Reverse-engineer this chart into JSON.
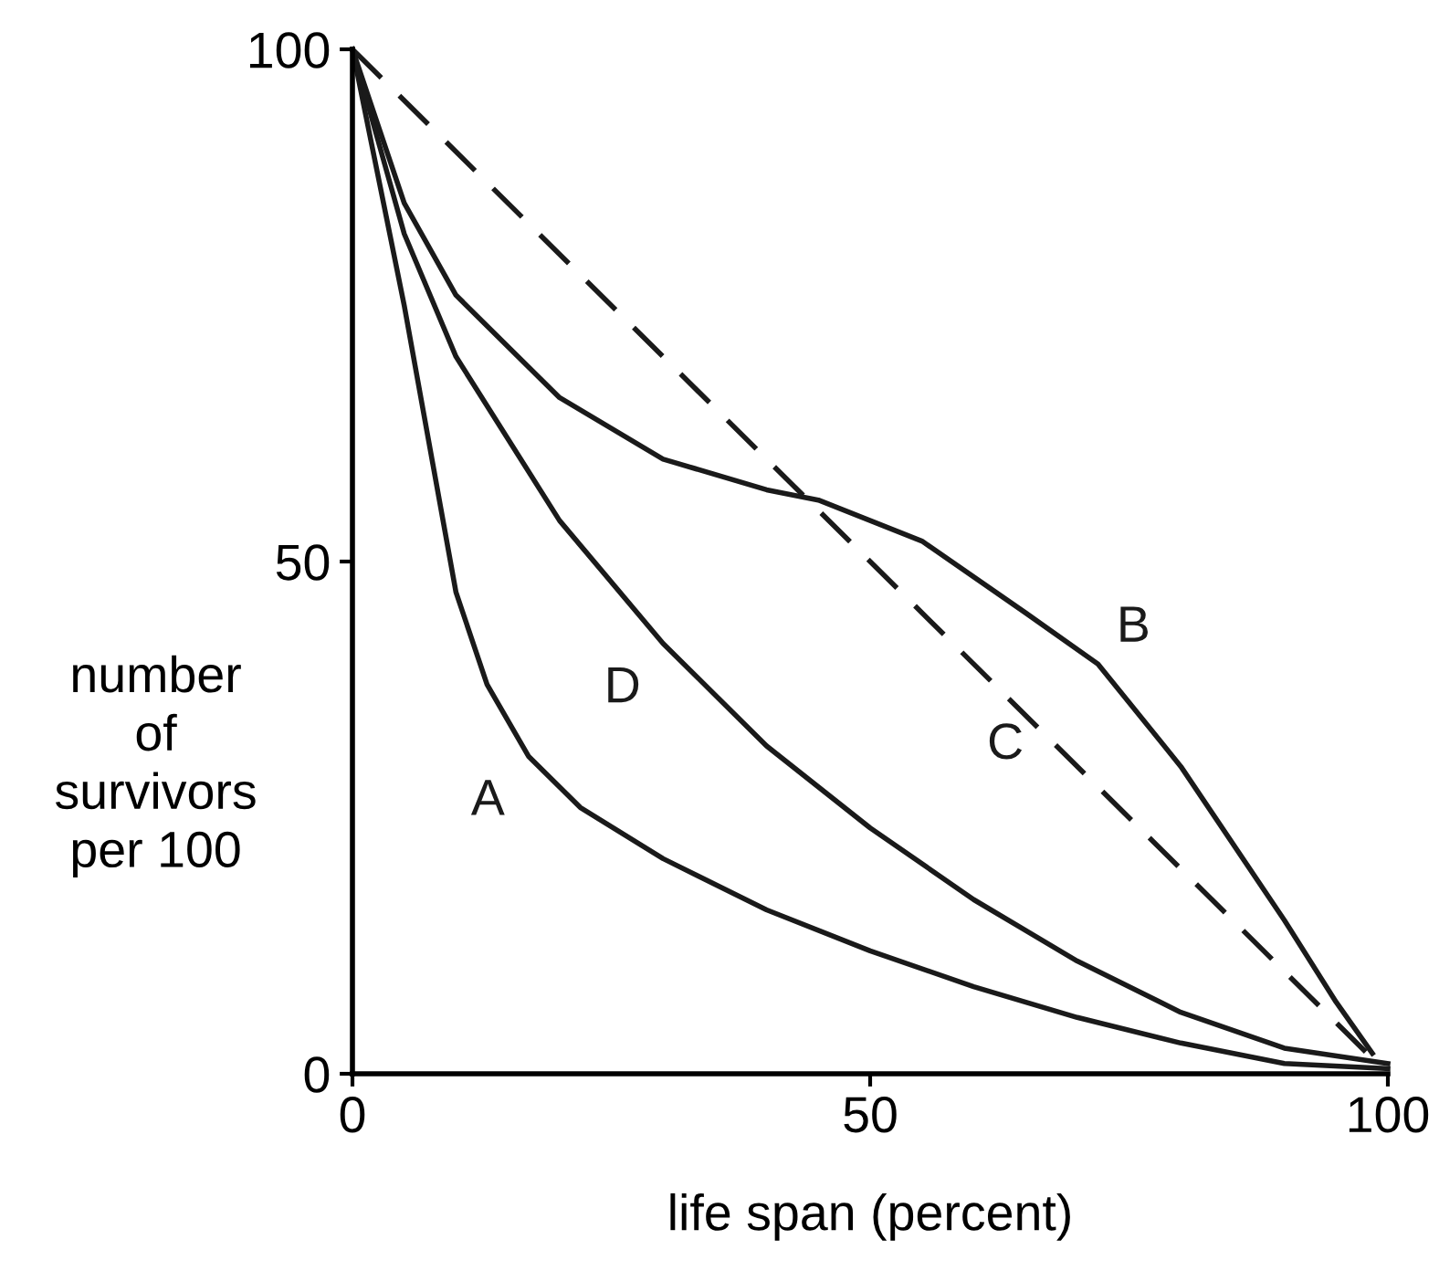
{
  "chart_data": {
    "type": "line",
    "xlabel": "life span (percent)",
    "ylabel": "number\nof\nsurvivors\nper 100",
    "xlim": [
      0,
      100
    ],
    "ylim": [
      0,
      100
    ],
    "xticks": [
      0,
      50,
      100
    ],
    "yticks": [
      0,
      50,
      100
    ],
    "grid": false,
    "legend": false,
    "marker": "none",
    "series": [
      {
        "name": "A",
        "color": "#1a1a1a",
        "line_style": "solid",
        "x": [
          0,
          5,
          10,
          13,
          17,
          22,
          30,
          40,
          50,
          60,
          70,
          80,
          90,
          100
        ],
        "values": [
          100,
          75,
          47,
          38,
          31,
          26,
          21,
          16,
          12,
          8.5,
          5.5,
          3,
          1,
          0.5
        ]
      },
      {
        "name": "B",
        "color": "#1a1a1a",
        "line_style": "solid",
        "x": [
          0,
          5,
          10,
          20,
          30,
          40,
          45,
          55,
          65,
          72,
          80,
          90,
          95,
          98.5
        ],
        "values": [
          100,
          85,
          76,
          66,
          60,
          57,
          56,
          52,
          45,
          40,
          30,
          15,
          7,
          2
        ]
      },
      {
        "name": "C",
        "color": "#1a1a1a",
        "line_style": "dashed",
        "x": [
          0,
          98.5
        ],
        "values": [
          100,
          1.5
        ]
      },
      {
        "name": "D",
        "color": "#1a1a1a",
        "line_style": "solid",
        "x": [
          0,
          5,
          10,
          20,
          30,
          40,
          50,
          60,
          70,
          80,
          90,
          100
        ],
        "values": [
          100,
          82,
          70,
          54,
          42,
          32,
          24,
          17,
          11,
          6,
          2.5,
          1
        ]
      }
    ]
  }
}
